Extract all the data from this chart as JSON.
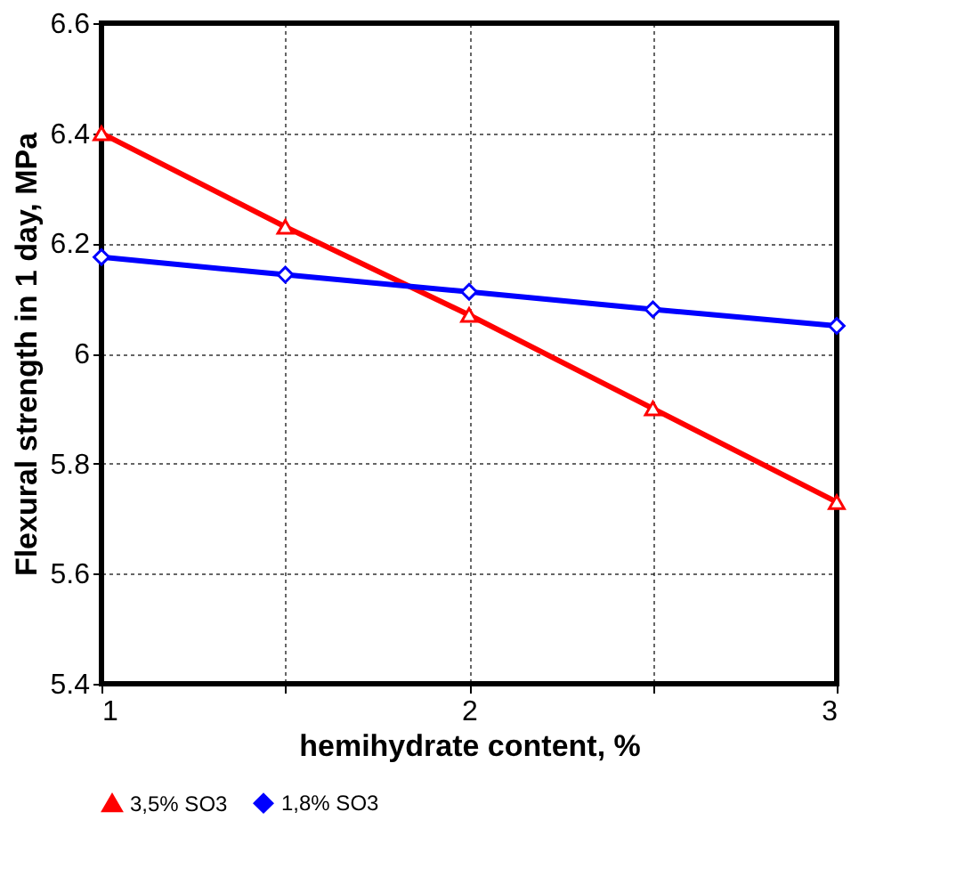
{
  "chart_data": {
    "type": "line",
    "xlabel": "hemihydrate content, %",
    "ylabel": "Flexural strength in 1 day, MPa",
    "x": [
      1,
      1.5,
      2,
      2.5,
      3
    ],
    "series": [
      {
        "name": "3,5% SO3",
        "color": "#ff0000",
        "marker": "triangle",
        "values": [
          6.4,
          6.23,
          6.07,
          5.9,
          5.73
        ]
      },
      {
        "name": "1,8% SO3",
        "color": "#0000ff",
        "marker": "diamond",
        "values": [
          6.175,
          6.143,
          6.112,
          6.08,
          6.05
        ]
      }
    ],
    "xlim": [
      1,
      3
    ],
    "xticks": [
      1,
      {
        "value": 1.5,
        "label": null
      },
      2,
      {
        "value": 2.5,
        "label": null
      },
      3
    ],
    "ylim": [
      5.4,
      6.6
    ],
    "yticks": [
      5.4,
      5.6,
      5.8,
      6,
      6.2,
      6.4,
      6.6
    ],
    "grid": true,
    "legend": "bottom",
    "line_style": "solid"
  }
}
